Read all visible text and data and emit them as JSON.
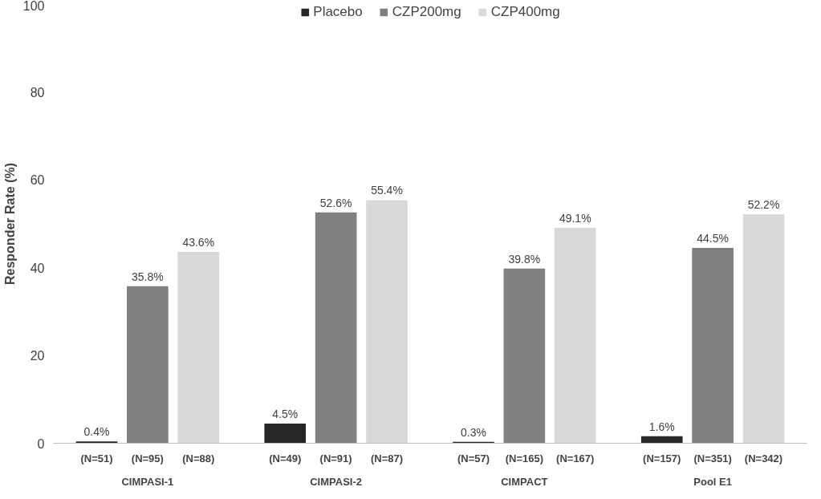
{
  "chart_data": {
    "type": "bar",
    "ylabel": "Responder Rate (%)",
    "categories": [
      "CIMPASI-1",
      "CIMPASI-2",
      "CIMPACT",
      "Pool E1"
    ],
    "series": [
      {
        "name": "Placebo",
        "color": "#262626",
        "values": [
          0.4,
          4.5,
          0.3,
          1.6
        ],
        "value_labels": [
          "0.4%",
          "4.5%",
          "0.3%",
          "1.6%"
        ]
      },
      {
        "name": "CZP200mg",
        "color": "#808080",
        "values": [
          35.8,
          52.6,
          39.8,
          44.5
        ],
        "value_labels": [
          "35.8%",
          "52.6%",
          "39.8%",
          "44.5%"
        ]
      },
      {
        "name": "CZP400mg",
        "color": "#d9d9d9",
        "values": [
          43.6,
          55.4,
          49.1,
          52.2
        ],
        "value_labels": [
          "43.6%",
          "55.4%",
          "49.1%",
          "52.2%"
        ]
      }
    ],
    "annotations": [
      "(N=51)",
      "(N=95)",
      "(N=88)",
      "(N=49)",
      "(N=91)",
      "(N=87)",
      "(N=57)",
      "(N=165)",
      "(N=167)",
      "(N=157)",
      "(N=351)",
      "(N=342)"
    ],
    "ylim": [
      0,
      100
    ],
    "yticks": [
      0,
      20,
      40,
      60,
      80,
      100
    ],
    "grid": false,
    "legend": "top"
  }
}
